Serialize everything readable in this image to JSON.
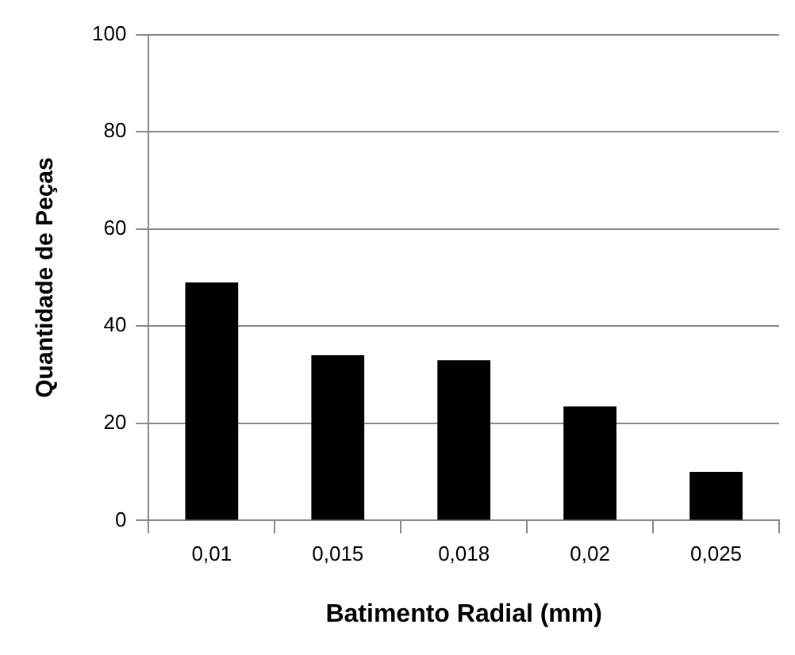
{
  "chart_data": {
    "type": "bar",
    "xlabel": "Batimento Radial (mm)",
    "ylabel": "Quantidade de Peças",
    "categories": [
      "0,01",
      "0,015",
      "0,018",
      "0,02",
      "0,025"
    ],
    "values": [
      49,
      34,
      33,
      23.5,
      10
    ],
    "color": "#000000",
    "ylim": [
      0,
      100
    ],
    "yticks": [
      0,
      20,
      40,
      60,
      80,
      100
    ],
    "grid": "y",
    "legend": false
  }
}
